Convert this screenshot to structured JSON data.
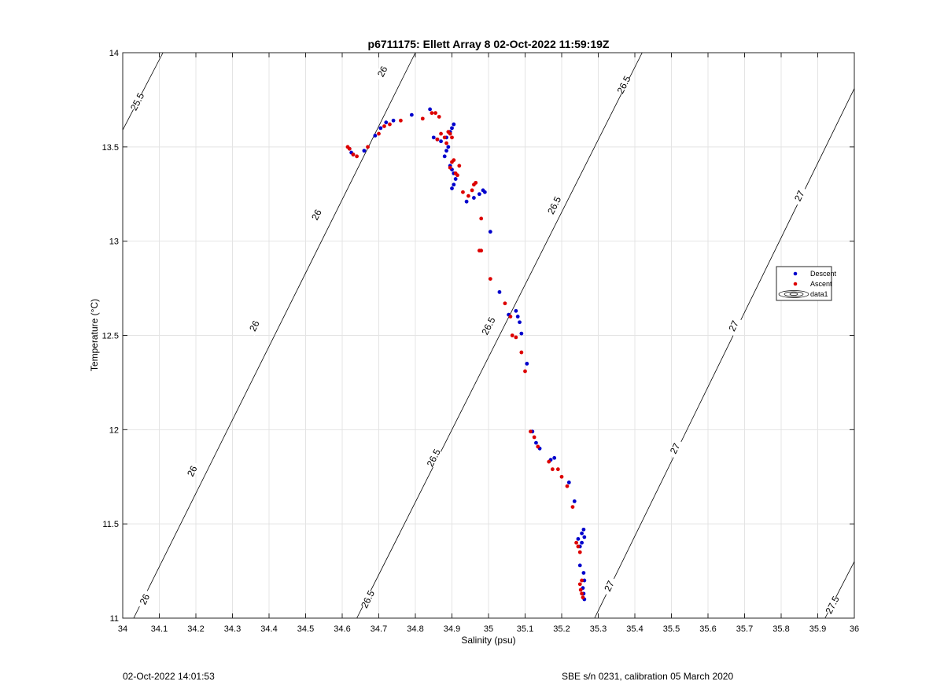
{
  "footer": {
    "left_text": "02-Oct-2022 14:01:53",
    "right_text": "SBE s/n 0231, calibration 05 March 2020"
  },
  "chart_data": {
    "type": "scatter",
    "title": "p6711175: Ellett Array 8 02-Oct-2022 11:59:19Z",
    "xlabel": "Salinity (psu)",
    "ylabel": "Temperature (°C)",
    "xlim": [
      34,
      36
    ],
    "ylim": [
      11,
      14
    ],
    "xticks": [
      34,
      34.1,
      34.2,
      34.3,
      34.4,
      34.5,
      34.6,
      34.7,
      34.8,
      34.9,
      35,
      35.1,
      35.2,
      35.3,
      35.4,
      35.5,
      35.6,
      35.7,
      35.8,
      35.9,
      36
    ],
    "xtick_labels": [
      "34",
      "34.1",
      "34.2",
      "34.3",
      "34.4",
      "34.5",
      "34.6",
      "34.7",
      "34.8",
      "34.9",
      "35",
      "35.1",
      "35.2",
      "35.3",
      "35.4",
      "35.5",
      "35.6",
      "35.7",
      "35.8",
      "35.9",
      "36"
    ],
    "yticks": [
      11,
      11.5,
      12,
      12.5,
      13,
      13.5,
      14
    ],
    "ytick_labels": [
      "11",
      "11.5",
      "12",
      "12.5",
      "13",
      "13.5",
      "14"
    ],
    "grid": true,
    "legend_position": "right",
    "legend": [
      {
        "label": "Descent",
        "color": "#0000cc",
        "marker": "dot"
      },
      {
        "label": "Ascent",
        "color": "#dd0000",
        "marker": "dot"
      },
      {
        "label": "data1",
        "color": "#000000",
        "marker": "contour"
      }
    ],
    "series": [
      {
        "name": "Descent",
        "color": "#0000cc",
        "x": [
          34.62,
          34.625,
          34.63,
          34.66,
          34.69,
          34.705,
          34.72,
          34.74,
          34.79,
          34.84,
          34.85,
          34.86,
          34.87,
          34.885,
          34.895,
          34.9,
          34.905,
          34.89,
          34.885,
          34.88,
          34.895,
          34.9,
          34.905,
          34.91,
          34.905,
          34.9,
          34.94,
          34.96,
          34.975,
          34.985,
          34.99,
          35.005,
          35.03,
          35.055,
          35.075,
          35.08,
          35.085,
          35.09,
          35.105,
          35.12,
          35.13,
          35.14,
          35.17,
          35.18,
          35.22,
          35.235,
          35.245,
          35.255,
          35.26,
          35.262,
          35.255,
          35.25,
          35.25,
          35.26,
          35.262,
          35.258,
          35.26,
          35.262
        ],
        "y": [
          13.49,
          13.47,
          13.46,
          13.48,
          13.56,
          13.6,
          13.63,
          13.64,
          13.67,
          13.7,
          13.55,
          13.54,
          13.53,
          13.55,
          13.58,
          13.6,
          13.62,
          13.5,
          13.48,
          13.45,
          13.4,
          13.38,
          13.36,
          13.33,
          13.3,
          13.28,
          13.21,
          13.23,
          13.25,
          13.27,
          13.26,
          13.05,
          12.73,
          12.61,
          12.63,
          12.6,
          12.57,
          12.51,
          12.35,
          11.99,
          11.93,
          11.9,
          11.84,
          11.85,
          11.72,
          11.62,
          11.42,
          11.45,
          11.47,
          11.43,
          11.4,
          11.38,
          11.28,
          11.24,
          11.2,
          11.16,
          11.13,
          11.1
        ]
      },
      {
        "name": "Ascent",
        "color": "#dd0000",
        "x": [
          34.615,
          34.62,
          34.63,
          34.64,
          34.67,
          34.7,
          34.715,
          34.73,
          34.76,
          34.82,
          34.845,
          34.855,
          34.86,
          34.865,
          34.87,
          34.88,
          34.885,
          34.89,
          34.895,
          34.9,
          34.905,
          34.9,
          34.895,
          34.91,
          34.92,
          34.915,
          34.93,
          34.945,
          34.955,
          34.96,
          34.965,
          34.98,
          34.98,
          34.975,
          35.005,
          35.045,
          35.06,
          35.065,
          35.075,
          35.09,
          35.1,
          35.115,
          35.125,
          35.135,
          35.165,
          35.175,
          35.19,
          35.2,
          35.215,
          35.23,
          35.24,
          35.245,
          35.25,
          35.255,
          35.25,
          35.252,
          35.255,
          35.258
        ],
        "y": [
          13.5,
          13.49,
          13.46,
          13.45,
          13.5,
          13.57,
          13.61,
          13.62,
          13.64,
          13.65,
          13.68,
          13.68,
          13.54,
          13.66,
          13.57,
          13.55,
          13.52,
          13.58,
          13.57,
          13.55,
          13.43,
          13.42,
          13.39,
          13.36,
          13.4,
          13.35,
          13.26,
          13.24,
          13.27,
          13.3,
          13.31,
          13.12,
          12.95,
          12.95,
          12.8,
          12.67,
          12.6,
          12.5,
          12.49,
          12.41,
          12.31,
          11.99,
          11.96,
          11.91,
          11.83,
          11.79,
          11.79,
          11.75,
          11.7,
          11.59,
          11.4,
          11.38,
          11.35,
          11.2,
          11.18,
          11.15,
          11.13,
          11.11
        ]
      }
    ],
    "isopycnals": [
      {
        "label": "25.5",
        "x": [
          34.0,
          34.11
        ],
        "y": [
          13.59,
          14.0
        ],
        "label_points": [
          [
            34.04,
            13.74
          ]
        ]
      },
      {
        "label": "26",
        "x": [
          34.03,
          34.8
        ],
        "y": [
          11.0,
          14.0
        ],
        "label_points": [
          [
            34.06,
            11.1
          ],
          [
            34.19,
            11.78
          ],
          [
            34.36,
            12.55
          ],
          [
            34.53,
            13.14
          ],
          [
            34.71,
            13.9
          ]
        ]
      },
      {
        "label": "26.5",
        "x": [
          34.64,
          35.42
        ],
        "y": [
          11.0,
          14.0
        ],
        "label_points": [
          [
            34.67,
            11.1
          ],
          [
            34.85,
            11.85
          ],
          [
            35.0,
            12.55
          ],
          [
            35.18,
            13.19
          ],
          [
            35.37,
            13.83
          ]
        ]
      },
      {
        "label": "27",
        "x": [
          35.29,
          36.0
        ],
        "y": [
          11.0,
          13.81
        ],
        "label_points": [
          [
            35.33,
            11.17
          ],
          [
            35.51,
            11.9
          ],
          [
            35.67,
            12.55
          ],
          [
            35.85,
            13.24
          ]
        ]
      },
      {
        "label": "27.5",
        "x": [
          35.92,
          36.0
        ],
        "y": [
          11.0,
          11.3
        ],
        "label_points": [
          [
            35.94,
            11.07
          ]
        ]
      }
    ]
  }
}
